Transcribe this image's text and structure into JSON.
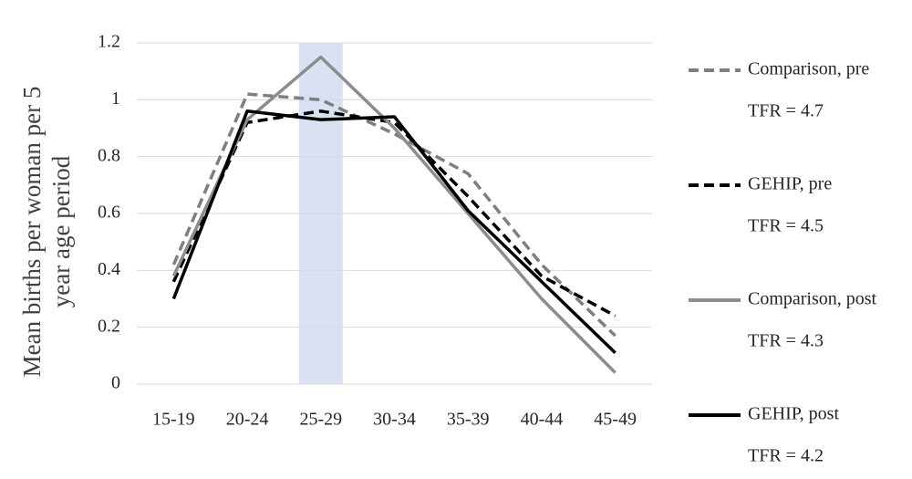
{
  "chart_data": {
    "type": "line",
    "ylabel": [
      "Mean births per woman per 5",
      "year age period"
    ],
    "categories": [
      "15-19",
      "20-24",
      "25-29",
      "30-34",
      "35-39",
      "40-44",
      "45-49"
    ],
    "highlight_index": 2,
    "highlight_color": "#d9e1f2",
    "series": [
      {
        "name": "Comparison, pre",
        "legend_note": "TFR = 4.7",
        "color": "#7f7f7f",
        "dashed": true,
        "values": [
          0.42,
          1.02,
          1.0,
          0.88,
          0.74,
          0.42,
          0.17
        ]
      },
      {
        "name": "GEHIP, pre",
        "legend_note": "TFR = 4.5",
        "color": "#000000",
        "dashed": true,
        "values": [
          0.36,
          0.92,
          0.96,
          0.92,
          0.66,
          0.38,
          0.24
        ]
      },
      {
        "name": "Comparison, post",
        "legend_note": "TFR = 4.3",
        "color": "#8c8c8c",
        "dashed": false,
        "values": [
          0.38,
          0.93,
          1.15,
          0.9,
          0.6,
          0.3,
          0.04
        ]
      },
      {
        "name": "GEHIP, post",
        "legend_note": "TFR = 4.2",
        "color": "#000000",
        "dashed": false,
        "values": [
          0.3,
          0.96,
          0.93,
          0.94,
          0.61,
          0.36,
          0.11
        ]
      }
    ],
    "ylim": [
      0,
      1.2
    ],
    "yticks": [
      0,
      0.2,
      0.4,
      0.6,
      0.8,
      1,
      1.2
    ],
    "grid": true,
    "legend": "right"
  }
}
